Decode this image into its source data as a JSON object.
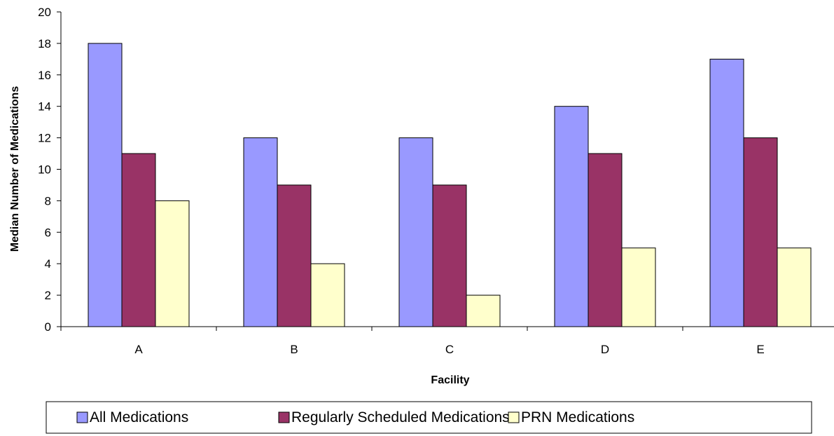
{
  "chart_data": {
    "type": "bar",
    "title": "",
    "xlabel": "Facility",
    "ylabel": "Median Number of Medications",
    "categories": [
      "A",
      "B",
      "C",
      "D",
      "E"
    ],
    "series": [
      {
        "name": "All Medications",
        "values": [
          18,
          12,
          12,
          14,
          17
        ],
        "color": "#9999FF"
      },
      {
        "name": "Regularly Scheduled Medications",
        "values": [
          11,
          9,
          9,
          11,
          12
        ],
        "color": "#993366"
      },
      {
        "name": "PRN Medications",
        "values": [
          8,
          4,
          2,
          5,
          5
        ],
        "color": "#FFFFCC"
      }
    ],
    "ylim": [
      0,
      20
    ],
    "yticks": [
      "0",
      "2",
      "4",
      "6",
      "8",
      "10",
      "12",
      "14",
      "16",
      "18",
      "20"
    ],
    "grid": false,
    "legend": "bottom"
  }
}
